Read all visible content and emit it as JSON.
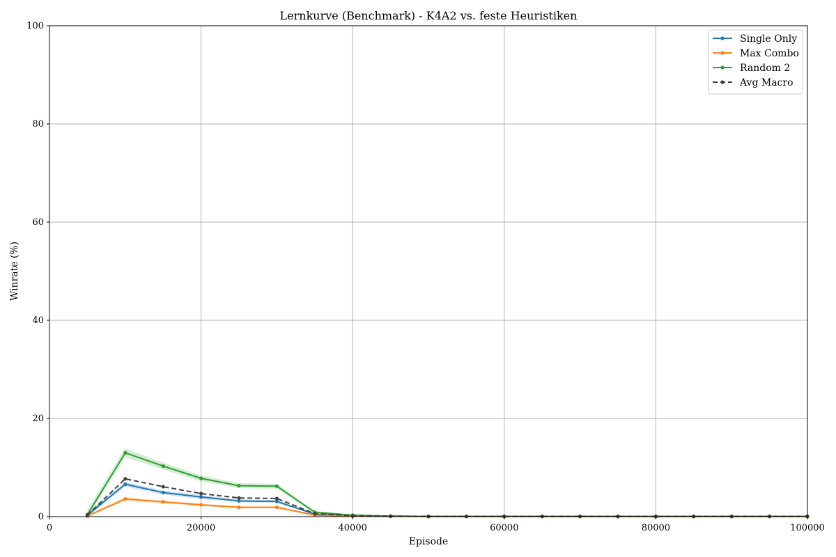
{
  "chart_data": {
    "type": "line",
    "title": "Lernkurve (Benchmark) - K4A2 vs. feste Heuristiken",
    "xlabel": "Episode",
    "ylabel": "Winrate (%)",
    "xlim": [
      0,
      100000
    ],
    "ylim": [
      0,
      100
    ],
    "xticks": [
      0,
      20000,
      40000,
      60000,
      80000,
      100000
    ],
    "yticks": [
      0,
      20,
      40,
      60,
      80,
      100
    ],
    "grid": true,
    "legend_position": "top-right",
    "x": [
      5000,
      10000,
      15000,
      20000,
      25000,
      30000,
      35000,
      40000,
      45000,
      50000,
      55000,
      60000,
      65000,
      70000,
      75000,
      80000,
      85000,
      90000,
      95000,
      100000
    ],
    "series": [
      {
        "name": "Single Only",
        "color": "#1f77b4",
        "style": "solid",
        "values": [
          0.3,
          6.6,
          4.9,
          4.0,
          3.2,
          3.1,
          0.5,
          0.2,
          0.1,
          0.05,
          0.05,
          0.05,
          0.05,
          0.05,
          0.05,
          0.05,
          0.05,
          0.05,
          0.05,
          0.05
        ],
        "band": [
          0.6,
          0.5,
          0.4,
          0.4,
          0.3,
          0.3,
          0.1,
          0.05,
          0.05,
          0.02,
          0.02,
          0.02,
          0.02,
          0.02,
          0.02,
          0.02,
          0.02,
          0.02,
          0.02,
          0.02
        ]
      },
      {
        "name": "Max Combo",
        "color": "#ff7f0e",
        "style": "solid",
        "values": [
          0.1,
          3.6,
          3.0,
          2.4,
          1.9,
          1.9,
          0.3,
          0.1,
          0.05,
          0.02,
          0.02,
          0.02,
          0.02,
          0.02,
          0.02,
          0.02,
          0.02,
          0.02,
          0.02,
          0.02
        ],
        "band": [
          0.4,
          0.4,
          0.3,
          0.3,
          0.2,
          0.2,
          0.1,
          0.05,
          0.02,
          0.01,
          0.01,
          0.01,
          0.01,
          0.01,
          0.01,
          0.01,
          0.01,
          0.01,
          0.01,
          0.01
        ]
      },
      {
        "name": "Random 2",
        "color": "#2ca02c",
        "style": "solid",
        "values": [
          0.4,
          13.0,
          10.3,
          7.8,
          6.3,
          6.2,
          0.9,
          0.3,
          0.1,
          0.05,
          0.05,
          0.05,
          0.05,
          0.05,
          0.05,
          0.05,
          0.05,
          0.05,
          0.05,
          0.05
        ],
        "band": [
          1.0,
          0.9,
          0.7,
          0.6,
          0.5,
          0.5,
          0.2,
          0.1,
          0.05,
          0.02,
          0.02,
          0.02,
          0.02,
          0.02,
          0.02,
          0.02,
          0.02,
          0.02,
          0.02,
          0.02
        ]
      },
      {
        "name": "Avg Macro",
        "color": "#404040",
        "style": "dashed",
        "values": [
          0.3,
          7.7,
          6.1,
          4.7,
          3.8,
          3.7,
          0.6,
          0.2,
          0.1,
          0.04,
          0.04,
          0.04,
          0.04,
          0.04,
          0.04,
          0.04,
          0.04,
          0.04,
          0.04,
          0.04
        ],
        "band": null
      }
    ]
  }
}
